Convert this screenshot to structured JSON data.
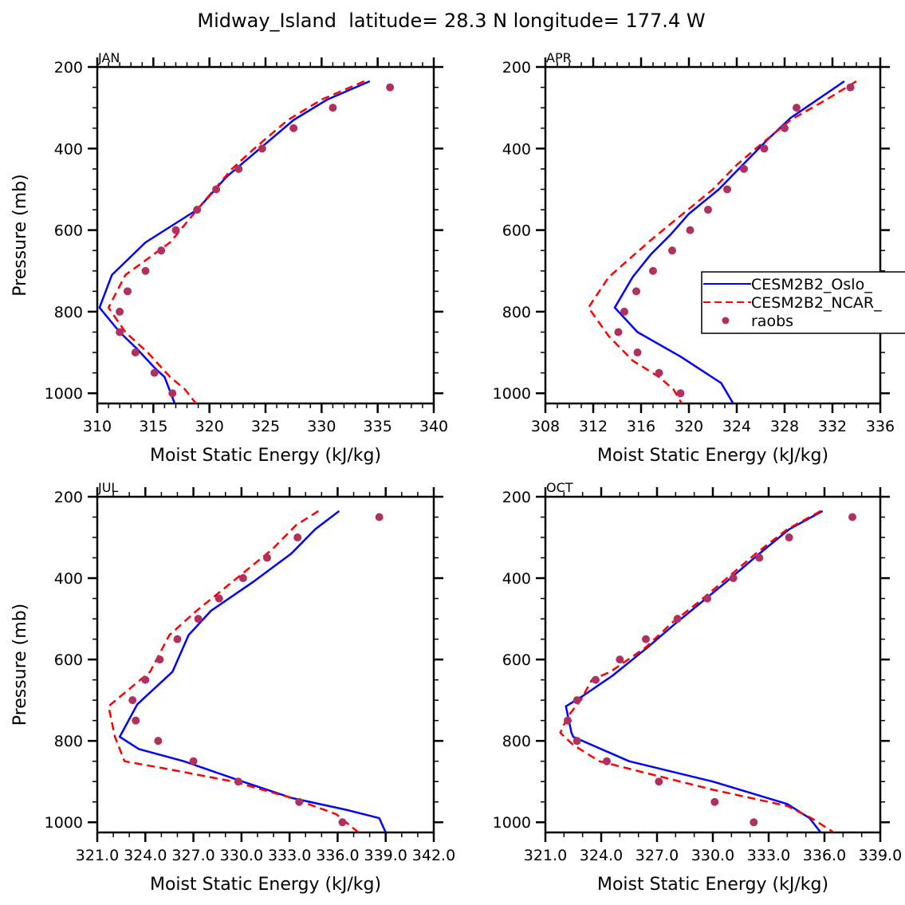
{
  "title": "Midway_Island  latitude= 28.3 N longitude= 177.4 W",
  "colors": {
    "oslo": "#0000ff",
    "ncar": "#ff0000",
    "raobs": "#b03060",
    "axis": "#000000"
  },
  "legend": {
    "entries": [
      {
        "label": "CESM2B2_Oslo_",
        "style": "solid",
        "color": "#0000ff"
      },
      {
        "label": "CESM2B2_NCAR_",
        "style": "dashed",
        "color": "#ff0000"
      },
      {
        "label": "raobs",
        "style": "dot",
        "color": "#b03060"
      }
    ],
    "placement": "APR panel, right side (clipped)"
  },
  "chart_data": [
    {
      "type": "line",
      "panel": "JAN",
      "xlabel": "Moist Static Energy (kJ/kg)",
      "ylabel": "Pressure (mb)",
      "xlim": [
        310,
        340
      ],
      "ylim": [
        1025,
        200
      ],
      "xticks": [
        310,
        315,
        320,
        325,
        330,
        335,
        340
      ],
      "xtick_labels": [
        "310",
        "315",
        "320",
        "325",
        "330",
        "335",
        "340"
      ],
      "yticks": [
        200,
        400,
        600,
        800,
        1000
      ],
      "ytick_labels": [
        "200",
        "400",
        "600",
        "800",
        "1000"
      ],
      "series": [
        {
          "name": "CESM2B2_Oslo_",
          "style": "solid",
          "x": [
            334.3,
            330.5,
            327.5,
            324.5,
            321.5,
            318.9,
            314.3,
            311.3,
            310.2,
            312.0,
            313.5,
            315.2,
            316.0,
            316.9
          ],
          "y": [
            235,
            280,
            330,
            400,
            470,
            550,
            630,
            710,
            790,
            850,
            890,
            940,
            960,
            1025
          ]
        },
        {
          "name": "CESM2B2_NCAR_",
          "style": "dashed",
          "x": [
            333.8,
            330.0,
            327.0,
            324.0,
            322.0,
            319.2,
            316.5,
            312.5,
            311.0,
            312.5,
            314.5,
            316.5,
            317.8,
            318.8
          ],
          "y": [
            235,
            280,
            330,
            400,
            450,
            540,
            630,
            710,
            790,
            850,
            900,
            960,
            990,
            1025
          ]
        },
        {
          "name": "raobs",
          "style": "dot",
          "x": [
            336.1,
            331.0,
            327.5,
            324.7,
            322.6,
            320.6,
            318.9,
            317.0,
            315.7,
            314.3,
            312.7,
            312.0,
            312.0,
            313.4,
            315.1,
            316.7
          ],
          "y": [
            250,
            300,
            350,
            400,
            450,
            500,
            550,
            600,
            650,
            700,
            750,
            800,
            850,
            900,
            950,
            1000
          ]
        }
      ]
    },
    {
      "type": "line",
      "panel": "APR",
      "xlabel": "Moist Static Energy (kJ/kg)",
      "ylabel": "",
      "xlim": [
        308,
        336
      ],
      "ylim": [
        1025,
        200
      ],
      "xticks": [
        308,
        312,
        316,
        320,
        324,
        328,
        332,
        336
      ],
      "xtick_labels": [
        "308",
        "312",
        "316",
        "320",
        "324",
        "328",
        "332",
        "336"
      ],
      "yticks": [
        200,
        400,
        600,
        800,
        1000
      ],
      "ytick_labels": [
        "200",
        "400",
        "600",
        "800",
        "1000"
      ],
      "series": [
        {
          "name": "CESM2B2_Oslo_",
          "style": "solid",
          "x": [
            333.0,
            331.0,
            328.5,
            326.5,
            324.5,
            322.5,
            320.0,
            318.5,
            316.8,
            315.3,
            313.8,
            315.7,
            319.3,
            322.7,
            323.7
          ],
          "y": [
            235,
            275,
            325,
            380,
            440,
            500,
            560,
            610,
            660,
            715,
            790,
            850,
            910,
            975,
            1025
          ]
        },
        {
          "name": "CESM2B2_NCAR_",
          "style": "dashed",
          "x": [
            334.0,
            331.5,
            328.5,
            326.0,
            324.0,
            322.0,
            319.5,
            317.0,
            313.3,
            311.6,
            313.3,
            315.3,
            317.5,
            318.7,
            319.4
          ],
          "y": [
            235,
            280,
            330,
            390,
            440,
            500,
            560,
            620,
            715,
            790,
            860,
            920,
            960,
            990,
            1025
          ]
        },
        {
          "name": "raobs",
          "style": "dot",
          "x": [
            333.5,
            329.0,
            328.0,
            326.3,
            324.6,
            323.2,
            321.6,
            320.1,
            318.6,
            317.0,
            315.6,
            314.6,
            314.1,
            315.7,
            317.5,
            319.3
          ],
          "y": [
            250,
            300,
            350,
            400,
            450,
            500,
            550,
            600,
            650,
            700,
            750,
            800,
            850,
            900,
            950,
            1000
          ]
        }
      ]
    },
    {
      "type": "line",
      "panel": "JUL",
      "xlabel": "Moist Static Energy (kJ/kg)",
      "ylabel": "Pressure (mb)",
      "xlim": [
        321.0,
        342.0
      ],
      "ylim": [
        1025,
        200
      ],
      "xticks": [
        321.0,
        324.0,
        327.0,
        330.0,
        333.0,
        336.0,
        339.0,
        342.0
      ],
      "xtick_labels": [
        "321.0",
        "324.0",
        "327.0",
        "330.0",
        "333.0",
        "336.0",
        "339.0",
        "342.0"
      ],
      "yticks": [
        200,
        400,
        600,
        800,
        1000
      ],
      "ytick_labels": [
        "200",
        "400",
        "600",
        "800",
        "1000"
      ],
      "series": [
        {
          "name": "CESM2B2_Oslo_",
          "style": "solid",
          "x": [
            336.1,
            334.6,
            333.1,
            330.7,
            328.1,
            326.7,
            325.7,
            323.5,
            322.4,
            323.6,
            326.4,
            329.7,
            333.1,
            336.6,
            338.6,
            339.0
          ],
          "y": [
            235,
            280,
            340,
            410,
            480,
            540,
            630,
            710,
            790,
            820,
            850,
            895,
            940,
            970,
            990,
            1025
          ]
        },
        {
          "name": "CESM2B2_NCAR_",
          "style": "dashed",
          "x": [
            334.8,
            333.4,
            331.9,
            329.4,
            327.2,
            325.5,
            324.3,
            321.7,
            322.1,
            322.7,
            325.5,
            329.5,
            333.1,
            335.9,
            337.3
          ],
          "y": [
            235,
            270,
            330,
            410,
            480,
            540,
            630,
            715,
            790,
            850,
            870,
            900,
            940,
            980,
            1025
          ]
        },
        {
          "name": "raobs",
          "style": "dot",
          "x": [
            338.6,
            333.5,
            331.6,
            330.1,
            328.6,
            327.3,
            326.0,
            324.9,
            324.0,
            323.2,
            323.4,
            324.8,
            327.0,
            329.8,
            333.6,
            336.3
          ],
          "y": [
            250,
            300,
            350,
            400,
            450,
            500,
            550,
            600,
            650,
            700,
            750,
            800,
            850,
            900,
            950,
            1000
          ]
        }
      ]
    },
    {
      "type": "line",
      "panel": "OCT",
      "xlabel": "Moist Static Energy (kJ/kg)",
      "ylabel": "",
      "xlim": [
        321.0,
        339.0
      ],
      "ylim": [
        1025,
        200
      ],
      "xticks": [
        321.0,
        324.0,
        327.0,
        330.0,
        333.0,
        336.0,
        339.0
      ],
      "xtick_labels": [
        "321.0",
        "324.0",
        "327.0",
        "330.0",
        "333.0",
        "336.0",
        "339.0"
      ],
      "yticks": [
        200,
        400,
        600,
        800,
        1000
      ],
      "ytick_labels": [
        "200",
        "400",
        "600",
        "800",
        "1000"
      ],
      "series": [
        {
          "name": "CESM2B2_Oslo_",
          "style": "solid",
          "x": [
            335.9,
            334.1,
            332.5,
            330.7,
            329.1,
            327.9,
            326.5,
            324.6,
            323.0,
            322.1,
            322.4,
            322.5,
            325.5,
            330.0,
            334.0,
            335.2,
            335.8
          ],
          "y": [
            235,
            280,
            340,
            410,
            470,
            515,
            570,
            640,
            690,
            715,
            780,
            790,
            850,
            900,
            955,
            990,
            1025
          ]
        },
        {
          "name": "CESM2B2_NCAR_",
          "style": "dashed",
          "x": [
            335.8,
            334.0,
            332.3,
            330.5,
            329.2,
            327.8,
            326.4,
            324.5,
            323.5,
            322.9,
            322.2,
            321.8,
            322.5,
            323.9,
            326.5,
            330.0,
            334.0,
            335.3,
            336.5
          ],
          "y": [
            235,
            280,
            340,
            410,
            460,
            510,
            570,
            630,
            650,
            700,
            740,
            780,
            810,
            850,
            880,
            920,
            960,
            990,
            1025
          ]
        },
        {
          "name": "raobs",
          "style": "dot",
          "x": [
            337.5,
            334.1,
            332.5,
            331.1,
            329.7,
            328.1,
            326.4,
            325.0,
            323.7,
            322.7,
            322.2,
            322.7,
            324.3,
            327.1,
            330.1,
            332.2
          ],
          "y": [
            250,
            300,
            350,
            400,
            450,
            500,
            550,
            600,
            650,
            700,
            750,
            800,
            850,
            900,
            950,
            1000
          ]
        }
      ]
    }
  ]
}
